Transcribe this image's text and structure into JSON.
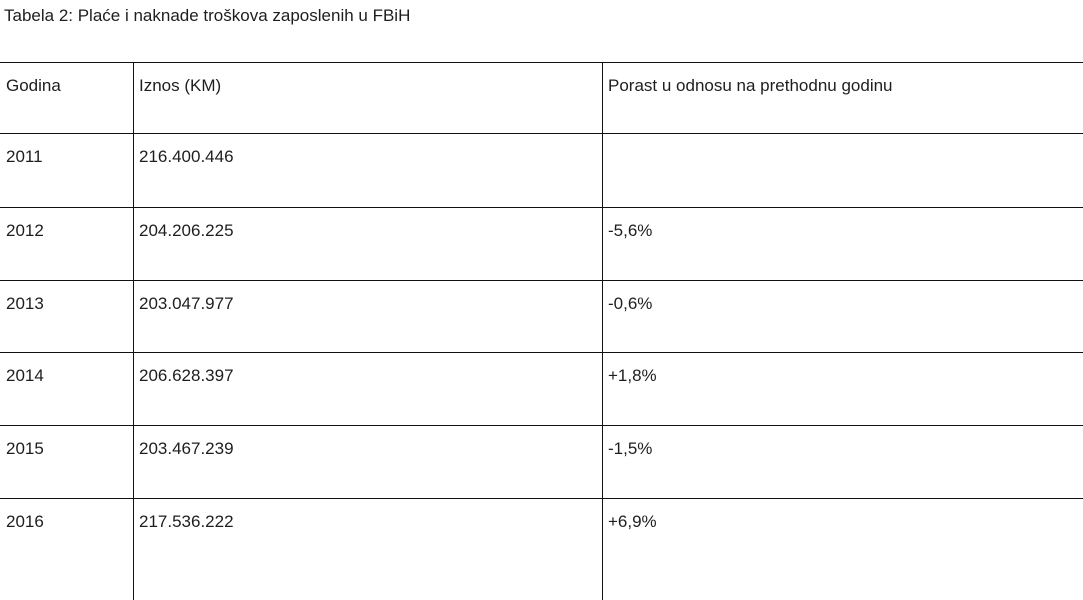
{
  "header": {
    "title": "Tabela 2: Plaće i naknade troškova zaposlenih u FBiH"
  },
  "table": {
    "columns": [
      "Godina",
      "Iznos (KM)",
      "Porast u odnosu na prethodnu godinu"
    ],
    "rows": [
      [
        "2011",
        "216.400.446"
      ],
      [
        "2012",
        "204.206.225",
        "-5,6%"
      ],
      [
        "2013",
        "203.047.977",
        "-0,6%"
      ],
      [
        "2014",
        "206.628.397",
        "+1,8%"
      ],
      [
        "2015",
        "203.467.239",
        "-1,5%"
      ],
      [
        "2016",
        "217.536.222",
        "+6,9%"
      ]
    ]
  }
}
